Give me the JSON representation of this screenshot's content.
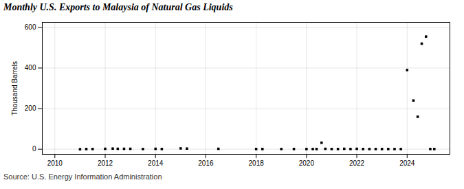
{
  "chart_data": {
    "type": "scatter",
    "title": "Monthly U.S. Exports to Malaysia of Natural Gas Liquids",
    "ylabel": "Thousand Barrels",
    "annotations": [
      "Source: U.S. Energy Information Administration"
    ],
    "x": [
      2011.0,
      2011.25,
      2011.5,
      2012.0,
      2012.3,
      2012.5,
      2012.75,
      2013.0,
      2013.5,
      2014.0,
      2014.25,
      2015.0,
      2015.25,
      2016.5,
      2018.0,
      2018.25,
      2019.0,
      2019.5,
      2020.0,
      2020.25,
      2020.4,
      2020.6,
      2020.75,
      2021.0,
      2021.25,
      2021.5,
      2021.75,
      2022.0,
      2022.25,
      2022.5,
      2022.75,
      2023.0,
      2023.25,
      2023.5,
      2023.75,
      2024.0,
      2024.25,
      2024.42,
      2024.58,
      2024.75,
      2024.92,
      2025.08
    ],
    "values": [
      0,
      1,
      1,
      2,
      3,
      2,
      2,
      2,
      1,
      2,
      1,
      4,
      3,
      2,
      1,
      1,
      1,
      1,
      1,
      1,
      1,
      32,
      2,
      1,
      1,
      2,
      1,
      2,
      1,
      1,
      1,
      1,
      1,
      1,
      1,
      390,
      240,
      160,
      520,
      555,
      1,
      1
    ],
    "xlim": [
      2009.5,
      2025.7
    ],
    "ylim": [
      -25,
      625
    ],
    "xticks": [
      2010,
      2012,
      2014,
      2016,
      2018,
      2020,
      2022,
      2024
    ],
    "yticks": [
      0,
      200,
      400,
      600
    ],
    "grid": true,
    "marker": "square"
  }
}
